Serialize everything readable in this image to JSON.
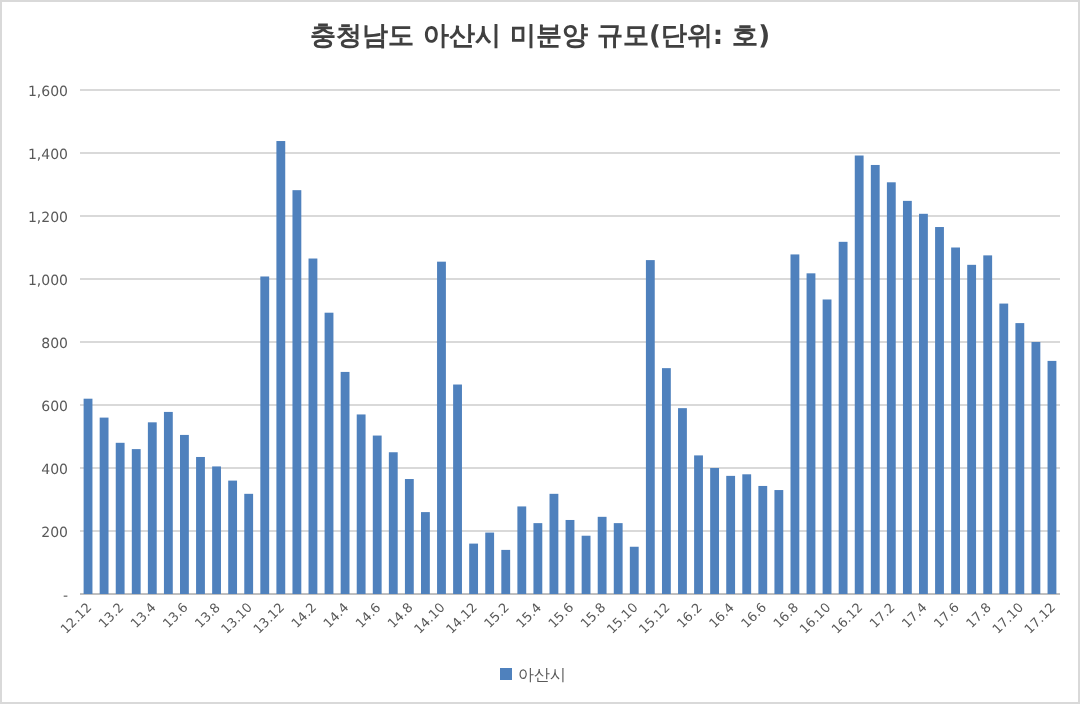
{
  "chart_data": {
    "type": "bar",
    "title": "충청남도 아산시 미분양 규모(단위: 호)",
    "categories": [
      "12.12",
      null,
      "13.2",
      null,
      "13.4",
      null,
      "13.6",
      null,
      "13.8",
      null,
      "13.10",
      null,
      "13.12",
      null,
      "14.2",
      null,
      "14.4",
      null,
      "14.6",
      null,
      "14.8",
      null,
      "14.10",
      null,
      "14.12",
      null,
      "15.2",
      null,
      "15.4",
      null,
      "15.6",
      null,
      "15.8",
      null,
      "15.10",
      null,
      "15.12",
      null,
      "16.2",
      null,
      "16.4",
      null,
      "16.6",
      null,
      "16.8",
      null,
      "16.10",
      null,
      "16.12",
      null,
      "17.2",
      null,
      "17.4",
      null,
      "17.6",
      null,
      "17.8",
      null,
      "17.10",
      null,
      "17.12"
    ],
    "series": [
      {
        "name": "아산시",
        "color": "#4f81bd",
        "values": [
          620,
          560,
          480,
          460,
          545,
          578,
          505,
          435,
          405,
          360,
          318,
          1008,
          1438,
          1282,
          1065,
          893,
          705,
          570,
          503,
          450,
          365,
          260,
          1055,
          665,
          160,
          195,
          140,
          278,
          225,
          318,
          235,
          185,
          245,
          225,
          150,
          1060,
          717,
          590,
          440,
          400,
          375,
          380,
          343,
          330,
          1078,
          1018,
          935,
          1118,
          1392,
          1362,
          1307,
          1248,
          1207,
          1165,
          1100,
          1045,
          1075,
          922,
          860,
          800,
          740
        ]
      }
    ],
    "ylim": [
      0,
      1600
    ],
    "yticks": [
      {
        "value": 0,
        "label": "-"
      },
      {
        "value": 200,
        "label": "200"
      },
      {
        "value": 400,
        "label": "400"
      },
      {
        "value": 600,
        "label": "600"
      },
      {
        "value": 800,
        "label": "800"
      },
      {
        "value": 1000,
        "label": "1,000"
      },
      {
        "value": 1200,
        "label": "1,200"
      },
      {
        "value": 1400,
        "label": "1,400"
      },
      {
        "value": 1600,
        "label": "1,600"
      }
    ],
    "grid": "y",
    "legend": "bottom"
  }
}
